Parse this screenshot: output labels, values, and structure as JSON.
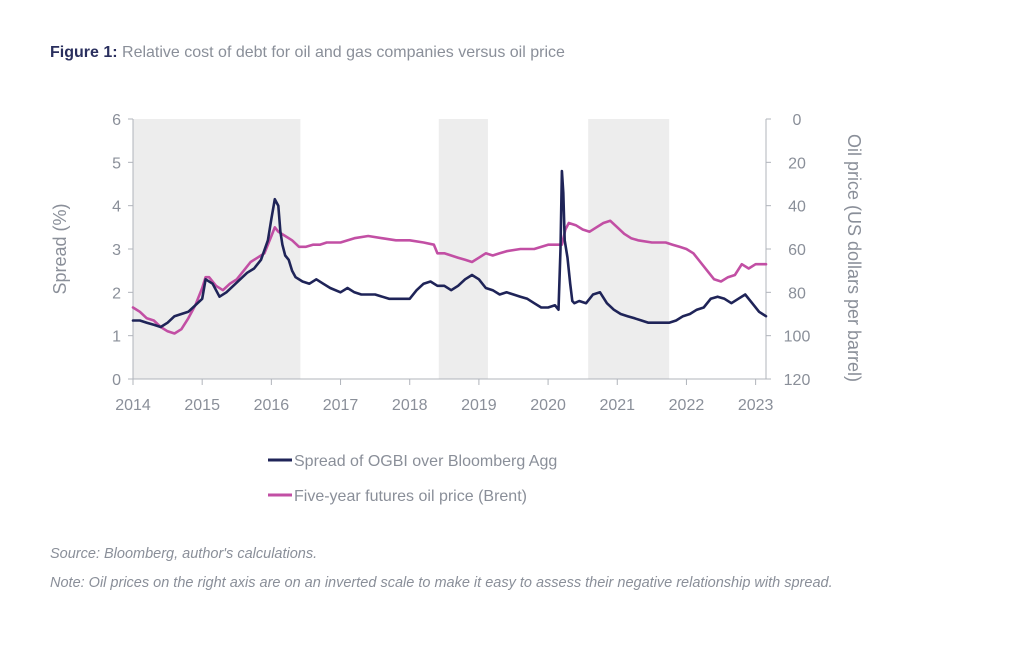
{
  "figure": {
    "label": "Figure 1:",
    "title": "Relative cost of debt for oil and gas companies versus oil price",
    "source": "Source: Bloomberg, author's calculations.",
    "note": "Note: Oil prices on the right axis are on an inverted scale to make it easy to assess their negative relationship with spread."
  },
  "colors": {
    "spread": "#1f2458",
    "oil": "#c24fa4",
    "shade": "#ededed",
    "axis": "#b0b4bb",
    "text": "#8a8f99"
  },
  "chart_data": {
    "type": "line",
    "title": "Relative cost of debt for oil and gas companies versus oil price",
    "ylabel": "Spread (%)",
    "y2label": "Oil price (US dollars per barrel)",
    "y2_inverted": true,
    "xlim": [
      2014,
      2023.15
    ],
    "ylim": [
      0,
      6
    ],
    "y2lim": [
      0,
      120
    ],
    "xticks": [
      "2014",
      "2015",
      "2016",
      "2017",
      "2018",
      "2019",
      "2020",
      "2021",
      "2022",
      "2023"
    ],
    "yticks": [
      "0",
      "1",
      "2",
      "3",
      "4",
      "5",
      "6"
    ],
    "y2ticks": [
      "0",
      "20",
      "40",
      "60",
      "80",
      "100",
      "120"
    ],
    "grid": false,
    "legend_position": "bottom",
    "shaded_periods": [
      [
        2014.0,
        2016.42
      ],
      [
        2018.42,
        2019.13
      ],
      [
        2020.58,
        2021.75
      ]
    ],
    "series": [
      {
        "name": "Spread of OGBI over Bloomberg Agg",
        "axis": "left",
        "x": [
          2014.0,
          2014.1,
          2014.2,
          2014.3,
          2014.4,
          2014.5,
          2014.6,
          2014.7,
          2014.8,
          2014.9,
          2015.0,
          2015.05,
          2015.15,
          2015.25,
          2015.35,
          2015.45,
          2015.55,
          2015.65,
          2015.75,
          2015.85,
          2015.95,
          2016.0,
          2016.05,
          2016.1,
          2016.13,
          2016.16,
          2016.2,
          2016.25,
          2016.3,
          2016.35,
          2016.45,
          2016.55,
          2016.65,
          2016.75,
          2016.85,
          2017.0,
          2017.1,
          2017.2,
          2017.3,
          2017.5,
          2017.7,
          2017.9,
          2018.0,
          2018.1,
          2018.2,
          2018.3,
          2018.4,
          2018.5,
          2018.6,
          2018.7,
          2018.8,
          2018.9,
          2019.0,
          2019.1,
          2019.2,
          2019.3,
          2019.4,
          2019.5,
          2019.6,
          2019.7,
          2019.8,
          2019.9,
          2020.0,
          2020.1,
          2020.15,
          2020.18,
          2020.2,
          2020.22,
          2020.24,
          2020.28,
          2020.32,
          2020.35,
          2020.38,
          2020.45,
          2020.55,
          2020.65,
          2020.75,
          2020.85,
          2020.95,
          2021.05,
          2021.15,
          2021.25,
          2021.35,
          2021.45,
          2021.55,
          2021.65,
          2021.75,
          2021.85,
          2021.95,
          2022.05,
          2022.15,
          2022.25,
          2022.35,
          2022.45,
          2022.55,
          2022.65,
          2022.75,
          2022.85,
          2022.95,
          2023.05,
          2023.15
        ],
        "values": [
          1.35,
          1.35,
          1.3,
          1.25,
          1.2,
          1.3,
          1.45,
          1.5,
          1.55,
          1.7,
          1.85,
          2.3,
          2.2,
          1.9,
          2.0,
          2.15,
          2.3,
          2.45,
          2.55,
          2.75,
          3.2,
          3.7,
          4.15,
          4.0,
          3.4,
          3.1,
          2.85,
          2.75,
          2.5,
          2.35,
          2.25,
          2.2,
          2.3,
          2.2,
          2.1,
          2.0,
          2.1,
          2.0,
          1.95,
          1.95,
          1.85,
          1.85,
          1.85,
          2.05,
          2.2,
          2.25,
          2.15,
          2.15,
          2.05,
          2.15,
          2.3,
          2.4,
          2.3,
          2.1,
          2.05,
          1.95,
          2.0,
          1.95,
          1.9,
          1.85,
          1.75,
          1.65,
          1.65,
          1.7,
          1.6,
          3.0,
          4.8,
          4.3,
          3.2,
          2.8,
          2.2,
          1.8,
          1.75,
          1.8,
          1.75,
          1.95,
          2.0,
          1.75,
          1.6,
          1.5,
          1.45,
          1.4,
          1.35,
          1.3,
          1.3,
          1.3,
          1.3,
          1.35,
          1.45,
          1.5,
          1.6,
          1.65,
          1.85,
          1.9,
          1.85,
          1.75,
          1.85,
          1.95,
          1.75,
          1.55,
          1.45
        ]
      },
      {
        "name": "Five-year futures oil price (Brent)",
        "axis": "right",
        "x": [
          2014.0,
          2014.1,
          2014.2,
          2014.3,
          2014.4,
          2014.5,
          2014.6,
          2014.7,
          2014.8,
          2014.9,
          2015.0,
          2015.05,
          2015.1,
          2015.2,
          2015.3,
          2015.4,
          2015.5,
          2015.6,
          2015.7,
          2015.8,
          2015.9,
          2016.0,
          2016.05,
          2016.1,
          2016.2,
          2016.3,
          2016.4,
          2016.5,
          2016.6,
          2016.7,
          2016.8,
          2016.9,
          2017.0,
          2017.2,
          2017.4,
          2017.6,
          2017.8,
          2018.0,
          2018.2,
          2018.35,
          2018.4,
          2018.5,
          2018.6,
          2018.7,
          2018.8,
          2018.9,
          2019.0,
          2019.1,
          2019.2,
          2019.3,
          2019.4,
          2019.6,
          2019.8,
          2020.0,
          2020.2,
          2020.25,
          2020.3,
          2020.4,
          2020.5,
          2020.6,
          2020.7,
          2020.8,
          2020.9,
          2021.0,
          2021.1,
          2021.2,
          2021.3,
          2021.5,
          2021.7,
          2021.8,
          2021.9,
          2022.0,
          2022.1,
          2022.2,
          2022.3,
          2022.4,
          2022.5,
          2022.6,
          2022.7,
          2022.8,
          2022.9,
          2023.0,
          2023.15
        ],
        "values": [
          87,
          89,
          92,
          93,
          96,
          98,
          99,
          97,
          92,
          86,
          78,
          73,
          73,
          77,
          79,
          76,
          74,
          70,
          66,
          64,
          62,
          54,
          50,
          52,
          54,
          56,
          59,
          59,
          58,
          58,
          57,
          57,
          57,
          55,
          54,
          55,
          56,
          56,
          57,
          58,
          62,
          62,
          63,
          64,
          65,
          66,
          64,
          62,
          63,
          62,
          61,
          60,
          60,
          58,
          58,
          51,
          48,
          49,
          51,
          52,
          50,
          48,
          47,
          50,
          53,
          55,
          56,
          57,
          57,
          58,
          59,
          60,
          62,
          66,
          70,
          74,
          75,
          73,
          72,
          67,
          69,
          67,
          67
        ]
      }
    ]
  }
}
